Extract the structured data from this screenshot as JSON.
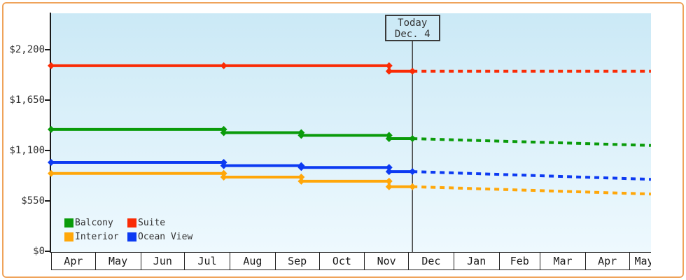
{
  "frame": {
    "border_color": "#efa35a"
  },
  "today_box": {
    "line1": "Today",
    "line2": "Dec. 4"
  },
  "legend": {
    "position": "bottom-left",
    "items": [
      {
        "label": "Balcony",
        "color": "#0a9b0a"
      },
      {
        "label": "Suite",
        "color": "#fa2b05"
      },
      {
        "label": "Interior",
        "color": "#ffa70a"
      },
      {
        "label": "Ocean View",
        "color": "#0c3af2"
      }
    ]
  },
  "chart_data": {
    "type": "line",
    "description": "Cruise cabin price history with step changes, a Today (Dec. 4) marker line, and dashed forecast lines to mid-May",
    "grid": false,
    "background": {
      "top": "#cbe9f6",
      "bottom": "#eef9fe"
    },
    "x_axis": {
      "months": [
        "Apr",
        "May",
        "Jun",
        "Jul",
        "Aug",
        "Sep",
        "Oct",
        "Nov",
        "Dec",
        "Jan",
        "Feb",
        "Mar",
        "Apr",
        "May"
      ],
      "month_days": [
        30,
        31,
        30,
        31,
        31,
        30,
        31,
        30,
        31,
        31,
        28,
        31,
        30,
        31
      ],
      "range": [
        "Apr 1",
        "May 16 (next year)"
      ]
    },
    "y_axis": {
      "tick_labels": [
        "$2,200",
        "$1,650",
        "$1,100",
        "$550",
        "$0"
      ],
      "tick_values": [
        2200,
        1650,
        1100,
        550,
        0
      ],
      "ylim": [
        0,
        2600
      ]
    },
    "today": {
      "date": "Dec 4",
      "label": "Dec. 4"
    },
    "series": [
      {
        "name": "Suite",
        "color": "#fa2b05",
        "history": [
          [
            "Apr 1",
            2025
          ],
          [
            "Jul 28",
            2025
          ],
          [
            "Nov 18",
            2025
          ],
          [
            "Nov 18",
            1965
          ],
          [
            "Dec 4",
            1965
          ]
        ],
        "forecast": [
          [
            "Dec 4",
            1965
          ],
          [
            "May 16 (next year)",
            1965
          ]
        ]
      },
      {
        "name": "Balcony",
        "color": "#0a9b0a",
        "history": [
          [
            "Apr 1",
            1330
          ],
          [
            "Jul 28",
            1330
          ],
          [
            "Jul 28",
            1295
          ],
          [
            "Sep 19",
            1295
          ],
          [
            "Sep 19",
            1265
          ],
          [
            "Nov 18",
            1265
          ],
          [
            "Nov 18",
            1230
          ],
          [
            "Dec 4",
            1230
          ]
        ],
        "forecast": [
          [
            "Dec 4",
            1230
          ],
          [
            "May 16 (next year)",
            1155
          ]
        ]
      },
      {
        "name": "Ocean View",
        "color": "#0c3af2",
        "history": [
          [
            "Apr 1",
            970
          ],
          [
            "Jul 28",
            970
          ],
          [
            "Jul 28",
            935
          ],
          [
            "Sep 19",
            935
          ],
          [
            "Sep 19",
            915
          ],
          [
            "Nov 18",
            915
          ],
          [
            "Nov 18",
            870
          ],
          [
            "Dec 4",
            870
          ]
        ],
        "forecast": [
          [
            "Dec 4",
            870
          ],
          [
            "May 16 (next year)",
            785
          ]
        ]
      },
      {
        "name": "Interior",
        "color": "#ffa70a",
        "history": [
          [
            "Apr 1",
            850
          ],
          [
            "Jul 28",
            850
          ],
          [
            "Jul 28",
            810
          ],
          [
            "Sep 19",
            810
          ],
          [
            "Sep 19",
            765
          ],
          [
            "Nov 18",
            765
          ],
          [
            "Nov 18",
            705
          ],
          [
            "Dec 4",
            705
          ]
        ],
        "forecast": [
          [
            "Dec 4",
            705
          ],
          [
            "May 16 (next year)",
            625
          ]
        ]
      }
    ]
  }
}
